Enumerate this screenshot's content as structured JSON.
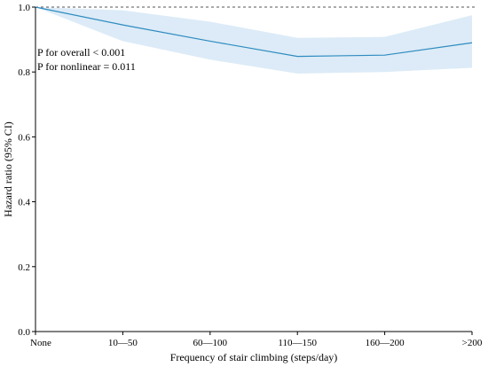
{
  "chart_data": {
    "type": "line",
    "xlabel": "Frequency of stair climbing (steps/day)",
    "ylabel": "Hazard ratio (95% CI)",
    "categories": [
      "None",
      "10—50",
      "60—100",
      "110—150",
      "160—200",
      ">200"
    ],
    "ylim": [
      0,
      1.0
    ],
    "yticks": [
      "0.0",
      "0.2",
      "0.4",
      "0.6",
      "0.8",
      "1.0"
    ],
    "reference_line": 1.0,
    "grid": false,
    "series": [
      {
        "values": [
          1.0,
          0.945,
          0.895,
          0.848,
          0.852,
          0.89
        ],
        "ci_lower": [
          1.0,
          0.895,
          0.838,
          0.795,
          0.8,
          0.813
        ],
        "ci_upper": [
          1.0,
          0.99,
          0.955,
          0.905,
          0.908,
          0.975
        ],
        "color": "#2e8bc0",
        "band_color": "#dcebf7"
      }
    ],
    "annotations": [
      "P for overall < 0.001",
      "P for nonlinear = 0.011"
    ]
  }
}
